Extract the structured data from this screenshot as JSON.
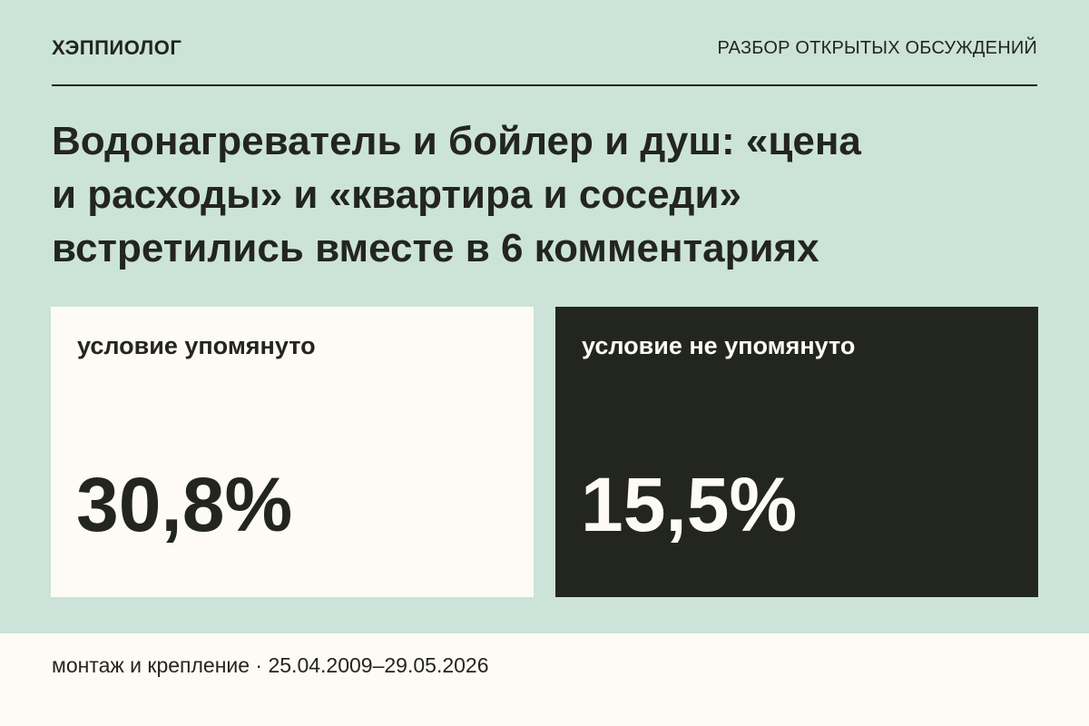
{
  "header": {
    "brand": "ХЭППИОЛОГ",
    "section": "РАЗБОР ОТКРЫТЫХ ОБСУЖДЕНИЙ"
  },
  "title": {
    "line1": "Водонагреватель и бойлер и душ: «цена",
    "line2": "и расходы» и «квартира и соседи»",
    "line3": "встретились вместе в 6 комментариях"
  },
  "cards": [
    {
      "label": "условие упомянуто",
      "value": "30,8%"
    },
    {
      "label": "условие не упомянуто",
      "value": "15,5%"
    }
  ],
  "footer": {
    "text": "монтаж и крепление · 25.04.2009–29.05.2026"
  },
  "colors": {
    "background": "#cce3d9",
    "dark": "#23261f",
    "light": "#fdfbf3"
  }
}
